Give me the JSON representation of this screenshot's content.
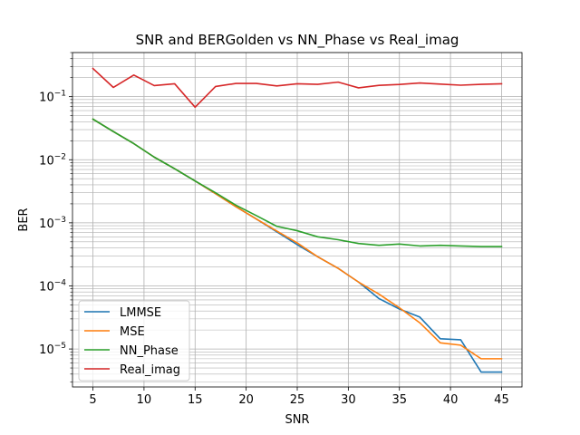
{
  "chart_data": {
    "type": "line",
    "title": "SNR and BERGolden vs NN_Phase vs Real_imag",
    "xlabel": "SNR",
    "ylabel": "BER",
    "xlim": [
      3,
      47
    ],
    "ylim": [
      2.5e-06,
      0.5
    ],
    "yscale": "log",
    "grid": "both (major and minor)",
    "legend_position": "lower-left",
    "x_ticks": [
      5,
      10,
      15,
      20,
      25,
      30,
      35,
      40,
      45
    ],
    "y_ticks": [
      {
        "value": 1e-05,
        "base": "10",
        "exp": "−5"
      },
      {
        "value": 0.0001,
        "base": "10",
        "exp": "−4"
      },
      {
        "value": 0.001,
        "base": "10",
        "exp": "−3"
      },
      {
        "value": 0.01,
        "base": "10",
        "exp": "−2"
      },
      {
        "value": 0.1,
        "base": "10",
        "exp": "−1"
      }
    ],
    "x": [
      5,
      7,
      9,
      11,
      13,
      15,
      17,
      19,
      21,
      23,
      25,
      27,
      29,
      31,
      33,
      35,
      37,
      39,
      41,
      43,
      45
    ],
    "series": [
      {
        "name": "LMMSE",
        "color": "#1f77b4",
        "values": [
          0.044,
          0.028,
          0.018,
          0.011,
          0.0072,
          0.0046,
          0.0029,
          0.0018,
          0.00115,
          0.00072,
          0.00045,
          0.00029,
          0.00019,
          0.000115,
          6.3e-05,
          4.3e-05,
          3.2e-05,
          1.45e-05,
          1.4e-05,
          4.3e-06,
          4.3e-06
        ]
      },
      {
        "name": "MSE",
        "color": "#ff7f0e",
        "values": [
          0.044,
          0.028,
          0.018,
          0.011,
          0.0072,
          0.0046,
          0.0029,
          0.0018,
          0.00115,
          0.00074,
          0.00048,
          0.00029,
          0.00019,
          0.000115,
          7.4e-05,
          4.5e-05,
          2.6e-05,
          1.25e-05,
          1.15e-05,
          7e-06,
          7e-06
        ]
      },
      {
        "name": "NN_Phase",
        "color": "#2ca02c",
        "values": [
          0.044,
          0.028,
          0.018,
          0.011,
          0.0072,
          0.0046,
          0.003,
          0.0019,
          0.0013,
          0.00088,
          0.00075,
          0.0006,
          0.00054,
          0.00047,
          0.00044,
          0.00046,
          0.00043,
          0.00044,
          0.00043,
          0.00042,
          0.00042
        ]
      },
      {
        "name": "Real_imag",
        "color": "#d62728",
        "values": [
          0.28,
          0.14,
          0.22,
          0.15,
          0.16,
          0.068,
          0.145,
          0.162,
          0.162,
          0.148,
          0.16,
          0.157,
          0.17,
          0.138,
          0.151,
          0.156,
          0.165,
          0.158,
          0.152,
          0.157,
          0.16
        ]
      }
    ]
  }
}
